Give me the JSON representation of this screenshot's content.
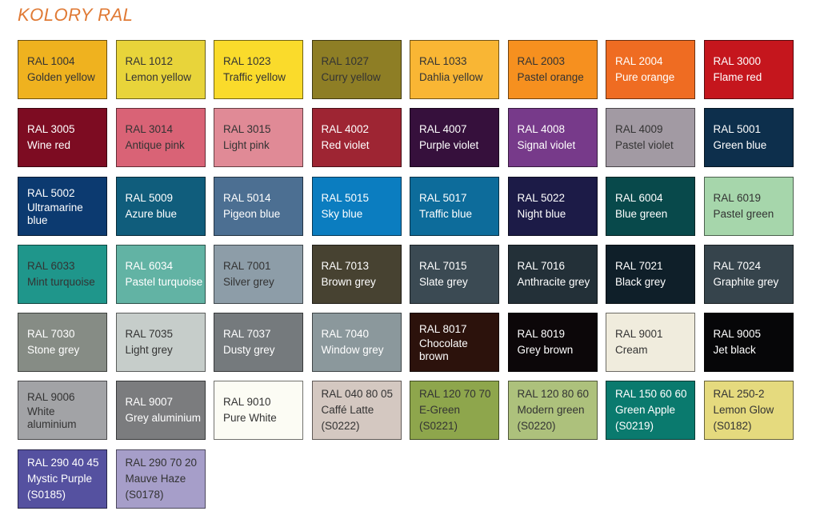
{
  "title": "KOLORY RAL",
  "title_color": "#e07a35",
  "swatches": [
    {
      "code": "RAL 1004",
      "name": "Golden yellow",
      "color": "#efb21f",
      "text": "dark"
    },
    {
      "code": "RAL 1012",
      "name": "Lemon yellow",
      "color": "#e8d43a",
      "text": "dark"
    },
    {
      "code": "RAL 1023",
      "name": "Traffic yellow",
      "color": "#fadb2b",
      "text": "dark"
    },
    {
      "code": "RAL 1027",
      "name": "Curry yellow",
      "color": "#8e7e25",
      "text": "dark"
    },
    {
      "code": "RAL 1033",
      "name": "Dahlia yellow",
      "color": "#f9b634",
      "text": "dark"
    },
    {
      "code": "RAL 2003",
      "name": "Pastel orange",
      "color": "#f6901f",
      "text": "dark"
    },
    {
      "code": "RAL 2004",
      "name": "Pure orange",
      "color": "#ef6c22",
      "text": "light"
    },
    {
      "code": "RAL 3000",
      "name": "Flame red",
      "color": "#c5161d",
      "text": "light"
    },
    {
      "code": "RAL 3005",
      "name": "Wine red",
      "color": "#7d0c22",
      "text": "light"
    },
    {
      "code": "RAL 3014",
      "name": "Antique pink",
      "color": "#d96376",
      "text": "dark"
    },
    {
      "code": "RAL 3015",
      "name": "Light pink",
      "color": "#e08a96",
      "text": "dark"
    },
    {
      "code": "RAL 4002",
      "name": "Red violet",
      "color": "#9e2533",
      "text": "light"
    },
    {
      "code": "RAL 4007",
      "name": "Purple violet",
      "color": "#36103c",
      "text": "light"
    },
    {
      "code": "RAL 4008",
      "name": "Signal violet",
      "color": "#773a8a",
      "text": "light"
    },
    {
      "code": "RAL 4009",
      "name": "Pastel violet",
      "color": "#a29aa3",
      "text": "dark"
    },
    {
      "code": "RAL 5001",
      "name": "Green blue",
      "color": "#0d2f4c",
      "text": "light"
    },
    {
      "code": "RAL 5002",
      "name": "Ultramarine blue",
      "color": "#0c3a70",
      "text": "light"
    },
    {
      "code": "RAL 5009",
      "name": "Azure blue",
      "color": "#105d7c",
      "text": "light"
    },
    {
      "code": "RAL 5014",
      "name": "Pigeon blue",
      "color": "#4c6f92",
      "text": "light"
    },
    {
      "code": "RAL 5015",
      "name": "Sky blue",
      "color": "#0b7dc0",
      "text": "light"
    },
    {
      "code": "RAL 5017",
      "name": "Traffic blue",
      "color": "#0d6c9b",
      "text": "light"
    },
    {
      "code": "RAL 5022",
      "name": "Night blue",
      "color": "#1c1b47",
      "text": "light"
    },
    {
      "code": "RAL 6004",
      "name": "Blue green",
      "color": "#08494b",
      "text": "light"
    },
    {
      "code": "RAL 6019",
      "name": "Pastel green",
      "color": "#a6d6ab",
      "text": "dark"
    },
    {
      "code": "RAL 6033",
      "name": "Mint turquoise",
      "color": "#1f968b",
      "text": "dark"
    },
    {
      "code": "RAL 6034",
      "name": "Pastel turquoise",
      "color": "#62b3a4",
      "text": "light"
    },
    {
      "code": "RAL 7001",
      "name": "Silver grey",
      "color": "#8d9da8",
      "text": "dark"
    },
    {
      "code": "RAL 7013",
      "name": "Brown grey",
      "color": "#474231",
      "text": "light"
    },
    {
      "code": "RAL 7015",
      "name": "Slate grey",
      "color": "#3b4a53",
      "text": "light"
    },
    {
      "code": "RAL 7016",
      "name": "Anthracite grey",
      "color": "#233038",
      "text": "light"
    },
    {
      "code": "RAL 7021",
      "name": "Black grey",
      "color": "#0f1f29",
      "text": "light"
    },
    {
      "code": "RAL 7024",
      "name": "Graphite grey",
      "color": "#36444c",
      "text": "light"
    },
    {
      "code": "RAL 7030",
      "name": "Stone grey",
      "color": "#868c85",
      "text": "light"
    },
    {
      "code": "RAL 7035",
      "name": "Light grey",
      "color": "#c6cdca",
      "text": "dark"
    },
    {
      "code": "RAL 7037",
      "name": "Dusty grey",
      "color": "#757a7d",
      "text": "light"
    },
    {
      "code": "RAL 7040",
      "name": "Window grey",
      "color": "#8b989c",
      "text": "light"
    },
    {
      "code": "RAL 8017",
      "name": "Chocolate brown",
      "color": "#2c120c",
      "text": "light"
    },
    {
      "code": "RAL 8019",
      "name": "Grey brown",
      "color": "#0c0709",
      "text": "light"
    },
    {
      "code": "RAL 9001",
      "name": "Cream",
      "color": "#f0ecdd",
      "text": "dark"
    },
    {
      "code": "RAL 9005",
      "name": "Jet black",
      "color": "#060608",
      "text": "light"
    },
    {
      "code": "RAL 9006",
      "name": "White aluminium",
      "color": "#a2a3a6",
      "text": "dark"
    },
    {
      "code": "RAL 9007",
      "name": "Grey aluminium",
      "color": "#7b7c7e",
      "text": "light"
    },
    {
      "code": "RAL 9010",
      "name": "Pure White",
      "color": "#fcfcf4",
      "text": "dark"
    },
    {
      "code": "RAL 040 80 05",
      "name": "Caffé Latte",
      "ref": "(S0222)",
      "color": "#d4c8c1",
      "text": "dark"
    },
    {
      "code": "RAL 120 70 70",
      "name": "E-Green",
      "ref": "(S0221)",
      "color": "#8ea64c",
      "text": "dark"
    },
    {
      "code": "RAL 120 80 60",
      "name": "Modern green",
      "ref": "(S0220)",
      "color": "#adc17c",
      "text": "dark"
    },
    {
      "code": "RAL 150 60 60",
      "name": "Green Apple",
      "ref": "(S0219)",
      "color": "#0a7a6e",
      "text": "light"
    },
    {
      "code": "RAL 250-2",
      "name": "Lemon Glow",
      "ref": "(S0182)",
      "color": "#e5da7e",
      "text": "dark"
    },
    {
      "code": "RAL 290 40 45",
      "name": "Mystic Purple",
      "ref": "(S0185)",
      "color": "#5551a0",
      "text": "light"
    },
    {
      "code": "RAL 290 70 20",
      "name": "Mauve Haze",
      "ref": "(S0178)",
      "color": "#a69ec9",
      "text": "dark"
    }
  ]
}
